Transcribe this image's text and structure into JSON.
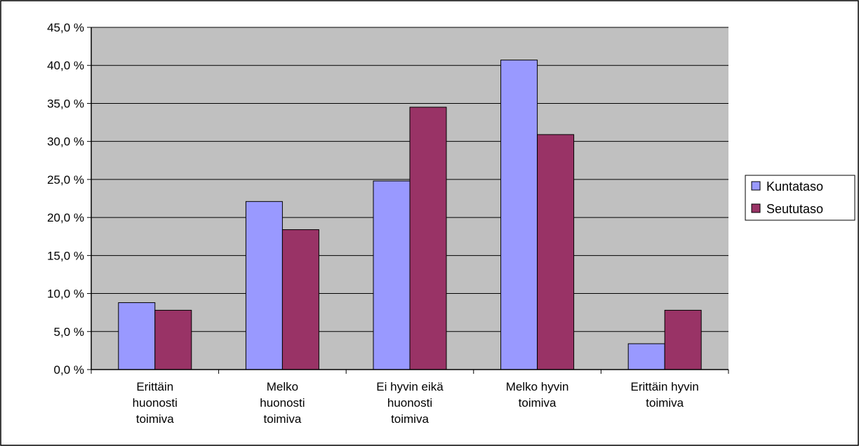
{
  "chart_data": {
    "type": "bar",
    "categories": [
      [
        "Erittäin",
        "huonosti",
        "toimiva"
      ],
      [
        "Melko",
        "huonosti",
        "toimiva"
      ],
      [
        "Ei hyvin eikä",
        "huonosti",
        "toimiva"
      ],
      [
        "Melko hyvin",
        "toimiva"
      ],
      [
        "Erittäin hyvin",
        "toimiva"
      ]
    ],
    "series": [
      {
        "name": "Kuntataso",
        "color": "#9999FF",
        "values": [
          8.8,
          22.1,
          24.8,
          40.7,
          3.4
        ]
      },
      {
        "name": "Seututaso",
        "color": "#993366",
        "values": [
          7.8,
          18.4,
          34.5,
          30.9,
          7.8
        ]
      }
    ],
    "ylim": [
      0,
      45
    ],
    "ytick_step": 5,
    "ytick_labels": [
      "0,0 %",
      "5,0 %",
      "10,0 %",
      "15,0 %",
      "20,0 %",
      "25,0 %",
      "30,0 %",
      "35,0 %",
      "40,0 %",
      "45,0 %"
    ],
    "plot_background": "#C0C0C0",
    "grid": true,
    "legend_position": "right"
  }
}
